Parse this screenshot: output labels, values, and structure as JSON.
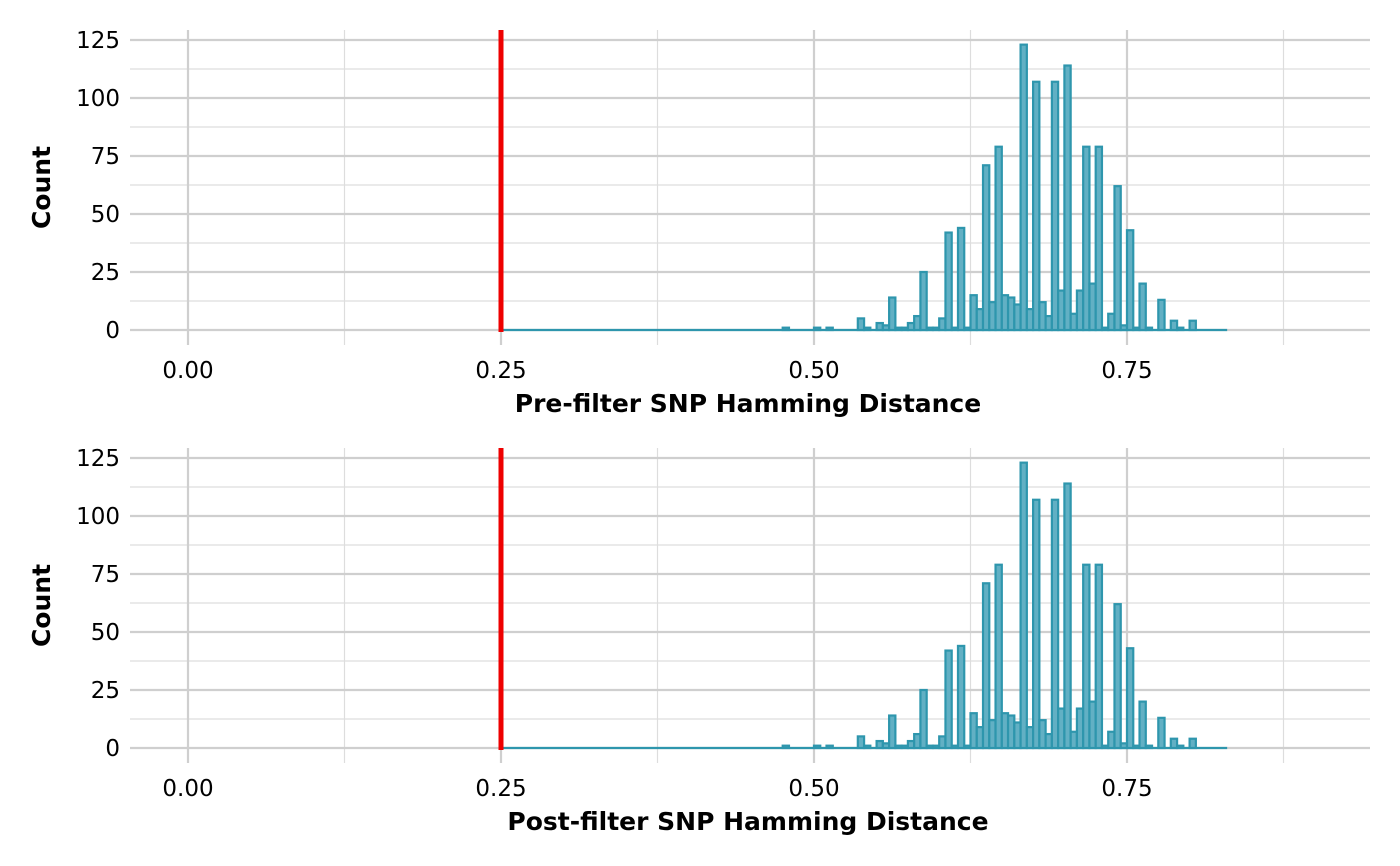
{
  "chart_data": [
    {
      "type": "bar",
      "xlabel": "Pre-filter SNP Hamming Distance",
      "ylabel": "Count",
      "xlim": [
        -0.09,
        0.93
      ],
      "ylim": [
        0,
        128
      ],
      "x_ticks": [
        "0.00",
        "0.25",
        "0.50",
        "0.75"
      ],
      "y_ticks": [
        "0",
        "25",
        "50",
        "75",
        "100",
        "125"
      ],
      "threshold": 0.25,
      "threshold_color": "#ee0000",
      "bar_fill": "#62b0c4",
      "bar_outline": "#2e96ad",
      "bin_width": 0.005,
      "bins_range": [
        0.25,
        0.83
      ],
      "bins": [
        {
          "x": 0.4775,
          "count": 1
        },
        {
          "x": 0.5025,
          "count": 1
        },
        {
          "x": 0.5125,
          "count": 1
        },
        {
          "x": 0.5375,
          "count": 5
        },
        {
          "x": 0.5425,
          "count": 1
        },
        {
          "x": 0.5525,
          "count": 3
        },
        {
          "x": 0.5575,
          "count": 2
        },
        {
          "x": 0.5625,
          "count": 14
        },
        {
          "x": 0.5675,
          "count": 1
        },
        {
          "x": 0.5725,
          "count": 1
        },
        {
          "x": 0.5775,
          "count": 3
        },
        {
          "x": 0.5825,
          "count": 6
        },
        {
          "x": 0.5875,
          "count": 25
        },
        {
          "x": 0.5925,
          "count": 1
        },
        {
          "x": 0.5975,
          "count": 1
        },
        {
          "x": 0.6025,
          "count": 5
        },
        {
          "x": 0.6075,
          "count": 42
        },
        {
          "x": 0.6125,
          "count": 1
        },
        {
          "x": 0.6175,
          "count": 44
        },
        {
          "x": 0.6225,
          "count": 1
        },
        {
          "x": 0.6275,
          "count": 15
        },
        {
          "x": 0.6325,
          "count": 9
        },
        {
          "x": 0.6375,
          "count": 71
        },
        {
          "x": 0.6425,
          "count": 12
        },
        {
          "x": 0.6475,
          "count": 79
        },
        {
          "x": 0.6525,
          "count": 15
        },
        {
          "x": 0.6575,
          "count": 14
        },
        {
          "x": 0.6625,
          "count": 11
        },
        {
          "x": 0.6675,
          "count": 123
        },
        {
          "x": 0.6725,
          "count": 9
        },
        {
          "x": 0.6775,
          "count": 107
        },
        {
          "x": 0.6825,
          "count": 12
        },
        {
          "x": 0.6875,
          "count": 6
        },
        {
          "x": 0.6925,
          "count": 107
        },
        {
          "x": 0.6975,
          "count": 17
        },
        {
          "x": 0.7025,
          "count": 114
        },
        {
          "x": 0.7075,
          "count": 7
        },
        {
          "x": 0.7125,
          "count": 17
        },
        {
          "x": 0.7175,
          "count": 79
        },
        {
          "x": 0.7225,
          "count": 20
        },
        {
          "x": 0.7275,
          "count": 79
        },
        {
          "x": 0.7325,
          "count": 1
        },
        {
          "x": 0.7375,
          "count": 7
        },
        {
          "x": 0.7425,
          "count": 62
        },
        {
          "x": 0.7475,
          "count": 2
        },
        {
          "x": 0.7525,
          "count": 43
        },
        {
          "x": 0.7575,
          "count": 1
        },
        {
          "x": 0.7625,
          "count": 20
        },
        {
          "x": 0.7675,
          "count": 1
        },
        {
          "x": 0.7775,
          "count": 13
        },
        {
          "x": 0.7875,
          "count": 4
        },
        {
          "x": 0.7925,
          "count": 1
        },
        {
          "x": 0.8025,
          "count": 4
        }
      ]
    },
    {
      "type": "bar",
      "xlabel": "Post-filter SNP Hamming Distance",
      "ylabel": "Count",
      "xlim": [
        -0.09,
        0.93
      ],
      "ylim": [
        0,
        128
      ],
      "x_ticks": [
        "0.00",
        "0.25",
        "0.50",
        "0.75"
      ],
      "y_ticks": [
        "0",
        "25",
        "50",
        "75",
        "100",
        "125"
      ],
      "threshold": 0.25,
      "threshold_color": "#ee0000",
      "bar_fill": "#62b0c4",
      "bar_outline": "#2e96ad",
      "bin_width": 0.005,
      "bins_range": [
        0.25,
        0.83
      ],
      "bins": [
        {
          "x": 0.4775,
          "count": 1
        },
        {
          "x": 0.5025,
          "count": 1
        },
        {
          "x": 0.5125,
          "count": 1
        },
        {
          "x": 0.5375,
          "count": 5
        },
        {
          "x": 0.5425,
          "count": 1
        },
        {
          "x": 0.5525,
          "count": 3
        },
        {
          "x": 0.5575,
          "count": 2
        },
        {
          "x": 0.5625,
          "count": 14
        },
        {
          "x": 0.5675,
          "count": 1
        },
        {
          "x": 0.5725,
          "count": 1
        },
        {
          "x": 0.5775,
          "count": 3
        },
        {
          "x": 0.5825,
          "count": 6
        },
        {
          "x": 0.5875,
          "count": 25
        },
        {
          "x": 0.5925,
          "count": 1
        },
        {
          "x": 0.5975,
          "count": 1
        },
        {
          "x": 0.6025,
          "count": 5
        },
        {
          "x": 0.6075,
          "count": 42
        },
        {
          "x": 0.6125,
          "count": 1
        },
        {
          "x": 0.6175,
          "count": 44
        },
        {
          "x": 0.6225,
          "count": 1
        },
        {
          "x": 0.6275,
          "count": 15
        },
        {
          "x": 0.6325,
          "count": 9
        },
        {
          "x": 0.6375,
          "count": 71
        },
        {
          "x": 0.6425,
          "count": 12
        },
        {
          "x": 0.6475,
          "count": 79
        },
        {
          "x": 0.6525,
          "count": 15
        },
        {
          "x": 0.6575,
          "count": 14
        },
        {
          "x": 0.6625,
          "count": 11
        },
        {
          "x": 0.6675,
          "count": 123
        },
        {
          "x": 0.6725,
          "count": 9
        },
        {
          "x": 0.6775,
          "count": 107
        },
        {
          "x": 0.6825,
          "count": 12
        },
        {
          "x": 0.6875,
          "count": 6
        },
        {
          "x": 0.6925,
          "count": 107
        },
        {
          "x": 0.6975,
          "count": 17
        },
        {
          "x": 0.7025,
          "count": 114
        },
        {
          "x": 0.7075,
          "count": 7
        },
        {
          "x": 0.7125,
          "count": 17
        },
        {
          "x": 0.7175,
          "count": 79
        },
        {
          "x": 0.7225,
          "count": 20
        },
        {
          "x": 0.7275,
          "count": 79
        },
        {
          "x": 0.7325,
          "count": 1
        },
        {
          "x": 0.7375,
          "count": 7
        },
        {
          "x": 0.7425,
          "count": 62
        },
        {
          "x": 0.7475,
          "count": 2
        },
        {
          "x": 0.7525,
          "count": 43
        },
        {
          "x": 0.7575,
          "count": 1
        },
        {
          "x": 0.7625,
          "count": 20
        },
        {
          "x": 0.7675,
          "count": 1
        },
        {
          "x": 0.7775,
          "count": 13
        },
        {
          "x": 0.7875,
          "count": 4
        },
        {
          "x": 0.7925,
          "count": 1
        },
        {
          "x": 0.8025,
          "count": 4
        }
      ]
    }
  ]
}
